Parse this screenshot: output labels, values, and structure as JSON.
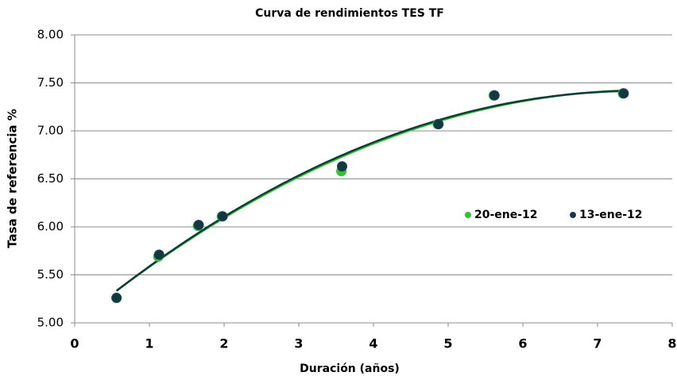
{
  "chart_data": {
    "type": "scatter",
    "title": "Curva de rendimientos TES TF",
    "x_label": "Duración (años)",
    "y_label": "Tasa de referencia %",
    "series": [
      {
        "name": "20-ene-12",
        "color": "#33c233",
        "trendline": "polynomial",
        "x": [
          0.56,
          1.12,
          1.65,
          1.97,
          3.57,
          4.86,
          5.61,
          7.34
        ],
        "values": [
          5.26,
          5.69,
          6.01,
          6.11,
          6.58,
          7.07,
          7.37,
          7.39
        ]
      },
      {
        "name": "13-ene-12",
        "color": "#123a3a",
        "trendline": "polynomial",
        "x": [
          0.56,
          1.13,
          1.66,
          1.98,
          3.58,
          4.87,
          5.62,
          7.35
        ],
        "values": [
          5.26,
          5.71,
          6.02,
          6.11,
          6.63,
          7.07,
          7.37,
          7.39
        ]
      }
    ],
    "xlim": [
      0,
      8
    ],
    "xticks": [
      0,
      1,
      2,
      3,
      4,
      5,
      6,
      7,
      8
    ],
    "ylim": [
      5,
      8
    ],
    "yticks": [
      {
        "value": 5,
        "label": "5.00"
      },
      {
        "value": 5.5,
        "label": "5.50"
      },
      {
        "value": 6,
        "label": "6.00"
      },
      {
        "value": 6.5,
        "label": "6.50"
      },
      {
        "value": 7,
        "label": "7.00"
      },
      {
        "value": 7.5,
        "label": "7.50"
      },
      {
        "value": 8,
        "label": "8.00"
      }
    ],
    "grid": true,
    "legend": "right"
  }
}
